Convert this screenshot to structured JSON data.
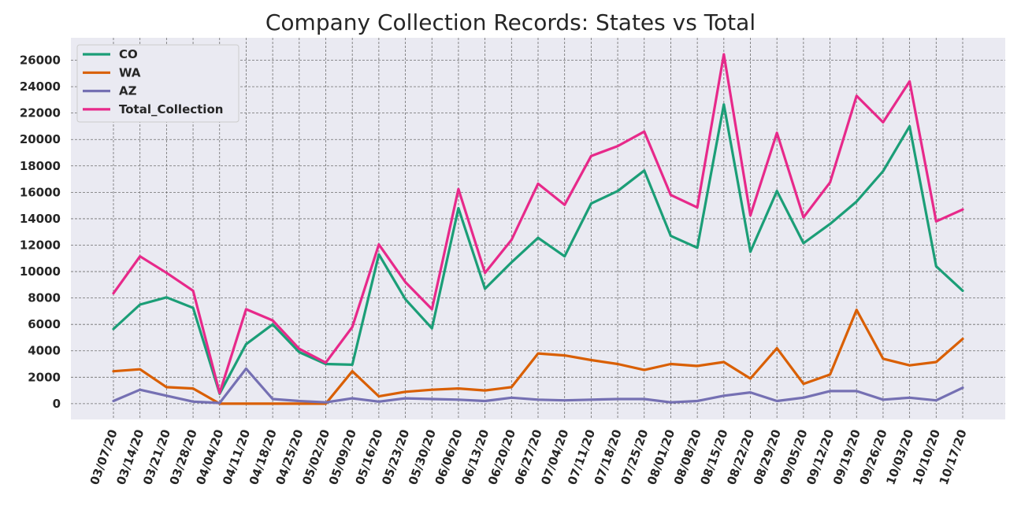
{
  "chart_data": {
    "type": "line",
    "title": "Company Collection Records: States vs Total",
    "xlabel": "",
    "ylabel": "",
    "categories": [
      "03/07/20",
      "03/14/20",
      "03/21/20",
      "03/28/20",
      "04/04/20",
      "04/11/20",
      "04/18/20",
      "04/25/20",
      "05/02/20",
      "05/09/20",
      "05/16/20",
      "05/23/20",
      "05/30/20",
      "06/06/20",
      "06/13/20",
      "06/20/20",
      "06/27/20",
      "07/04/20",
      "07/11/20",
      "07/18/20",
      "07/25/20",
      "08/01/20",
      "08/08/20",
      "08/15/20",
      "08/22/20",
      "08/29/20",
      "09/05/20",
      "09/12/20",
      "09/19/20",
      "09/26/20",
      "10/03/20",
      "10/10/20",
      "10/17/20"
    ],
    "yticks": [
      0,
      2000,
      4000,
      6000,
      8000,
      10000,
      12000,
      14000,
      16000,
      18000,
      20000,
      22000,
      24000,
      26000
    ],
    "ylim": [
      -1200,
      27700
    ],
    "grid": true,
    "legend_position": "top-left",
    "series": [
      {
        "name": "CO",
        "color": "#1b9e77",
        "values": [
          5650,
          7500,
          8050,
          7250,
          750,
          4500,
          6000,
          3900,
          3000,
          2950,
          11300,
          7900,
          5700,
          14800,
          8700,
          10700,
          12550,
          11150,
          15150,
          16100,
          17650,
          12700,
          11800,
          22650,
          11500,
          16100,
          12150,
          13600,
          15300,
          17600,
          21000,
          10400,
          8550
        ]
      },
      {
        "name": "WA",
        "color": "#d95f02",
        "values": [
          2450,
          2600,
          1250,
          1150,
          0,
          0,
          0,
          0,
          0,
          2450,
          550,
          900,
          1050,
          1150,
          1000,
          1250,
          3800,
          3650,
          3300,
          3000,
          2550,
          3000,
          2850,
          3150,
          1900,
          4200,
          1500,
          2200,
          7100,
          3400,
          2900,
          3150,
          4900
        ]
      },
      {
        "name": "AZ",
        "color": "#7570b3",
        "values": [
          200,
          1050,
          600,
          150,
          50,
          2650,
          350,
          200,
          100,
          400,
          150,
          400,
          350,
          300,
          200,
          450,
          300,
          250,
          300,
          350,
          350,
          100,
          200,
          600,
          850,
          200,
          450,
          950,
          950,
          300,
          450,
          250,
          1200
        ]
      },
      {
        "name": "Total_Collection",
        "color": "#e7298a",
        "values": [
          8350,
          11150,
          9900,
          8550,
          800,
          7150,
          6300,
          4150,
          3100,
          5800,
          12050,
          9200,
          7150,
          16250,
          9900,
          12400,
          16650,
          15050,
          18750,
          19500,
          20600,
          15800,
          14850,
          26450,
          14250,
          20500,
          14100,
          16750,
          23300,
          21300,
          24400,
          13800,
          14700
        ]
      }
    ]
  }
}
